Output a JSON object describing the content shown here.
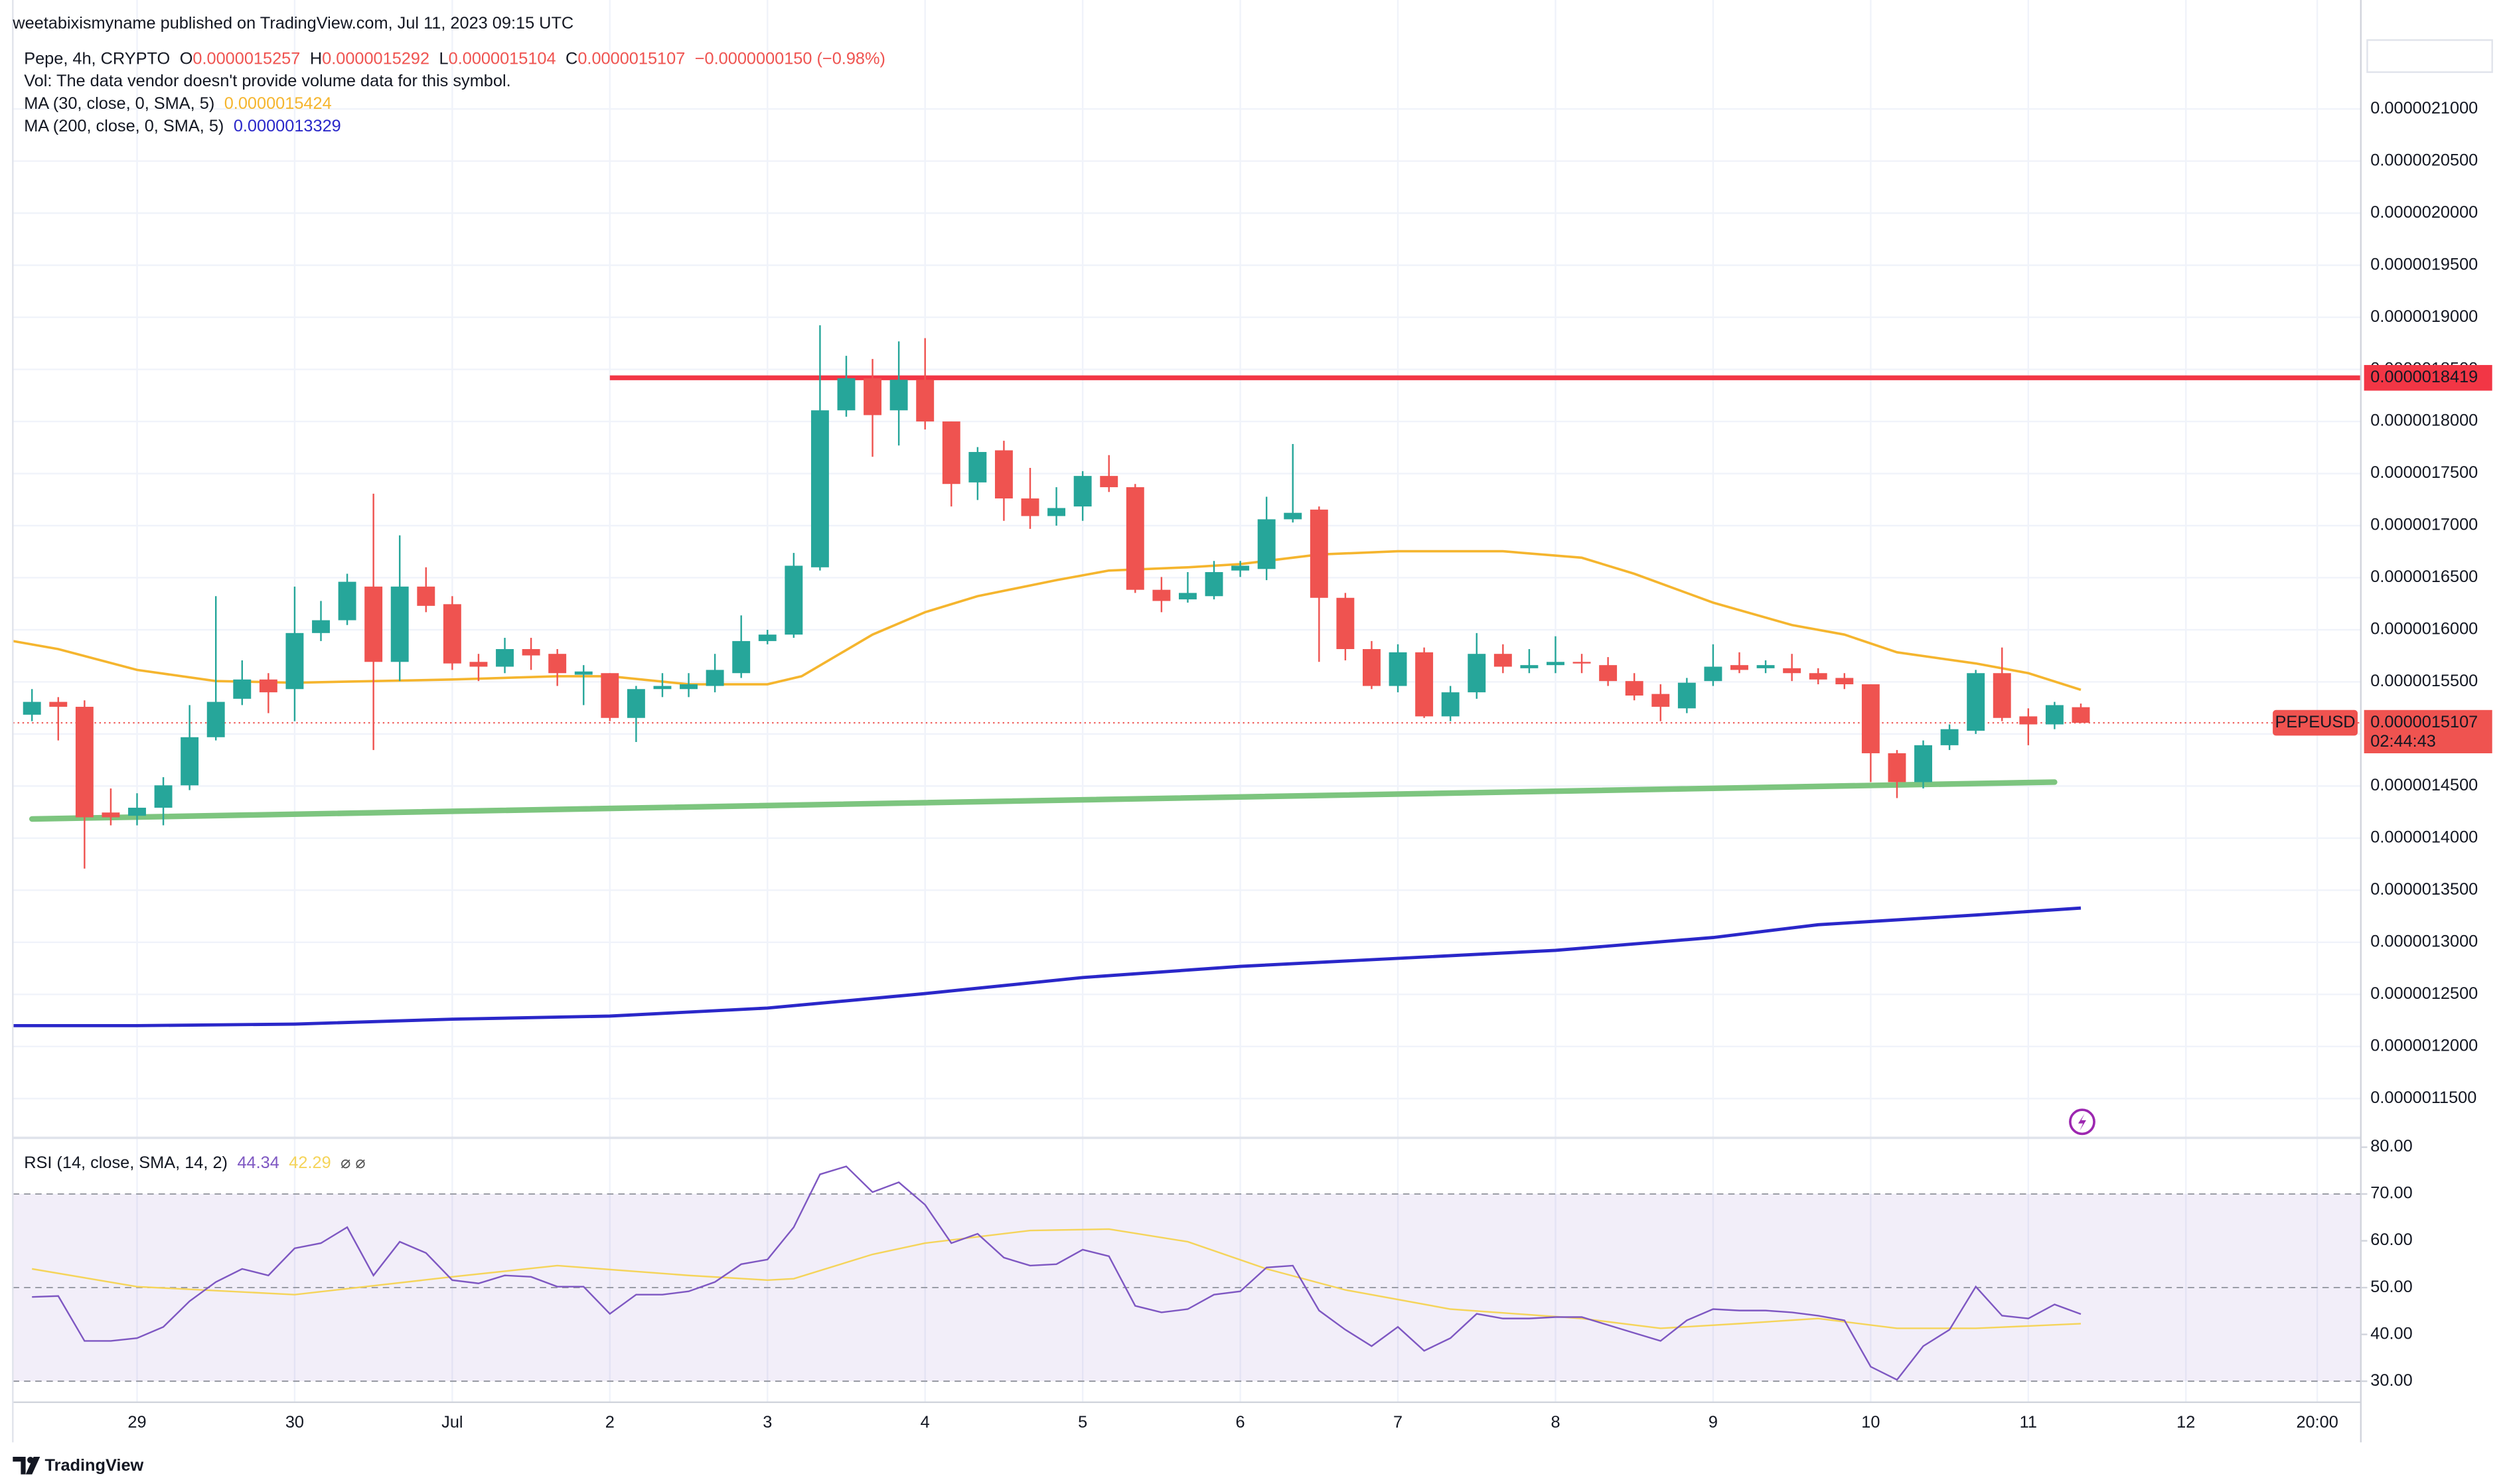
{
  "header": {
    "publisher": "weetabixismyname published on TradingView.com, Jul 11, 2023 09:15 UTC"
  },
  "footer": {
    "brand": "TradingView"
  },
  "chart_data": {
    "type": "candlestick",
    "legend": {
      "symbol": "Pepe, 4h, CRYPTO",
      "ohlc": [
        {
          "key": "O",
          "value": "0.0000015257"
        },
        {
          "key": "H",
          "value": "0.0000015292"
        },
        {
          "key": "L",
          "value": "0.0000015104"
        },
        {
          "key": "C",
          "value": "0.0000015107"
        }
      ],
      "change": "−0.0000000150 (−0.98%)",
      "volume_note": "Vol: The data vendor doesn't provide volume data for this symbol."
    },
    "up_color": "#26a69a",
    "down_color": "#ef5350",
    "grid": true,
    "xlim": [
      -0.73,
      88.66
    ],
    "xticks": [
      {
        "value": 4,
        "label": "29"
      },
      {
        "value": 10,
        "label": "30"
      },
      {
        "value": 16,
        "label": "Jul"
      },
      {
        "value": 22,
        "label": "2"
      },
      {
        "value": 28,
        "label": "3"
      },
      {
        "value": 34,
        "label": "4"
      },
      {
        "value": 40,
        "label": "5"
      },
      {
        "value": 46,
        "label": "6"
      },
      {
        "value": 52,
        "label": "7"
      },
      {
        "value": 58,
        "label": "8"
      },
      {
        "value": 64,
        "label": "9"
      },
      {
        "value": 70,
        "label": "10"
      },
      {
        "value": 76,
        "label": "11"
      },
      {
        "value": 82,
        "label": "12"
      },
      {
        "value": 87,
        "label": "20:00"
      }
    ],
    "ylim": [
      1.1123e-06,
      2.2046e-06
    ],
    "yticks": [
      {
        "value": 2.1e-06,
        "label": "0.0000021000"
      },
      {
        "value": 2.05e-06,
        "label": "0.0000020500"
      },
      {
        "value": 2e-06,
        "label": "0.0000020000"
      },
      {
        "value": 1.95e-06,
        "label": "0.0000019500"
      },
      {
        "value": 1.9e-06,
        "label": "0.0000019000"
      },
      {
        "value": 1.85e-06,
        "label": "0.0000018500"
      },
      {
        "value": 1.8e-06,
        "label": "0.0000018000"
      },
      {
        "value": 1.75e-06,
        "label": "0.0000017500"
      },
      {
        "value": 1.7e-06,
        "label": "0.0000017000"
      },
      {
        "value": 1.65e-06,
        "label": "0.0000016500"
      },
      {
        "value": 1.6e-06,
        "label": "0.0000016000"
      },
      {
        "value": 1.55e-06,
        "label": "0.0000015500"
      },
      {
        "value": 1.5e-06,
        "label": "0.0000015000"
      },
      {
        "value": 1.45e-06,
        "label": "0.0000014500"
      },
      {
        "value": 1.4e-06,
        "label": "0.0000014000"
      },
      {
        "value": 1.35e-06,
        "label": "0.0000013500"
      },
      {
        "value": 1.3e-06,
        "label": "0.0000013000"
      },
      {
        "value": 1.25e-06,
        "label": "0.0000012500"
      },
      {
        "value": 1.2e-06,
        "label": "0.0000012000"
      },
      {
        "value": 1.15e-06,
        "label": "0.0000011500"
      }
    ],
    "open": [
      1.5185e-06,
      1.5308e-06,
      1.5261e-06,
      1.4246e-06,
      1.4215e-06,
      1.4292e-06,
      1.4507e-06,
      1.4969e-06,
      1.5338e-06,
      1.5523e-06,
      1.5431e-06,
      1.5969e-06,
      1.6092e-06,
      1.6415e-06,
      1.5692e-06,
      1.6415e-06,
      1.6246e-06,
      1.5692e-06,
      1.5646e-06,
      1.5815e-06,
      1.5769e-06,
      1.5569e-06,
      1.5584e-06,
      1.5154e-06,
      1.5431e-06,
      1.5431e-06,
      1.5461e-06,
      1.5584e-06,
      1.5892e-06,
      1.5954e-06,
      1.66e-06,
      1.8107e-06,
      1.8415e-06,
      1.8107e-06,
      1.84e-06,
      1.8e-06,
      1.7415e-06,
      1.7723e-06,
      1.7261e-06,
      1.7092e-06,
      1.7184e-06,
      1.7477e-06,
      1.7369e-06,
      1.6384e-06,
      1.6292e-06,
      1.6323e-06,
      1.6569e-06,
      1.6584e-06,
      1.7061e-06,
      1.7154e-06,
      1.6307e-06,
      1.5815e-06,
      1.5461e-06,
      1.5784e-06,
      1.5169e-06,
      1.54e-06,
      1.5769e-06,
      1.5631e-06,
      1.5661e-06,
      1.5692e-06,
      1.5661e-06,
      1.5508e-06,
      1.5384e-06,
      1.5246e-06,
      1.5508e-06,
      1.5661e-06,
      1.5631e-06,
      1.5631e-06,
      1.5584e-06,
      1.5538e-06,
      1.5477e-06,
      1.4815e-06,
      1.4538e-06,
      1.4892e-06,
      1.5031e-06,
      1.5584e-06,
      1.5169e-06,
      1.5092e-06,
      1.5257e-06
    ],
    "high": [
      1.5431e-06,
      1.5354e-06,
      1.5323e-06,
      1.4477e-06,
      1.4431e-06,
      1.4585e-06,
      1.5277e-06,
      1.6323e-06,
      1.5707e-06,
      1.5584e-06,
      1.6415e-06,
      1.6277e-06,
      1.6538e-06,
      1.7307e-06,
      1.6907e-06,
      1.66e-06,
      1.6323e-06,
      1.5769e-06,
      1.5923e-06,
      1.5923e-06,
      1.5815e-06,
      1.5661e-06,
      1.5584e-06,
      1.5461e-06,
      1.5584e-06,
      1.5584e-06,
      1.5769e-06,
      1.6138e-06,
      1.6e-06,
      1.6738e-06,
      1.8923e-06,
      1.863e-06,
      1.86e-06,
      1.8769e-06,
      1.88e-06,
      1.8e-06,
      1.7754e-06,
      1.7815e-06,
      1.7554e-06,
      1.7369e-06,
      1.7523e-06,
      1.7677e-06,
      1.74e-06,
      1.6507e-06,
      1.6554e-06,
      1.6661e-06,
      1.6661e-06,
      1.7277e-06,
      1.7784e-06,
      1.7184e-06,
      1.6354e-06,
      1.5892e-06,
      1.5861e-06,
      1.583e-06,
      1.5461e-06,
      1.5969e-06,
      1.5861e-06,
      1.5815e-06,
      1.5938e-06,
      1.5769e-06,
      1.5738e-06,
      1.5584e-06,
      1.5477e-06,
      1.5538e-06,
      1.5861e-06,
      1.5784e-06,
      1.5707e-06,
      1.5769e-06,
      1.5631e-06,
      1.5584e-06,
      1.5477e-06,
      1.4846e-06,
      1.4938e-06,
      1.5092e-06,
      1.5615e-06,
      1.583e-06,
      1.5246e-06,
      1.5308e-06,
      1.5292e-06
    ],
    "low": [
      1.5123e-06,
      1.4938e-06,
      1.3708e-06,
      1.4123e-06,
      1.4123e-06,
      1.4123e-06,
      1.4461e-06,
      1.4938e-06,
      1.5277e-06,
      1.52e-06,
      1.5123e-06,
      1.5892e-06,
      1.6046e-06,
      1.4846e-06,
      1.5508e-06,
      1.6169e-06,
      1.5615e-06,
      1.5508e-06,
      1.5584e-06,
      1.5615e-06,
      1.5461e-06,
      1.5277e-06,
      1.5123e-06,
      1.4923e-06,
      1.5354e-06,
      1.5354e-06,
      1.54e-06,
      1.5538e-06,
      1.5861e-06,
      1.5923e-06,
      1.6569e-06,
      1.8046e-06,
      1.7661e-06,
      1.7769e-06,
      1.7923e-06,
      1.7184e-06,
      1.7246e-06,
      1.7046e-06,
      1.6969e-06,
      1.7e-06,
      1.7046e-06,
      1.7323e-06,
      1.6354e-06,
      1.6169e-06,
      1.6261e-06,
      1.6292e-06,
      1.6507e-06,
      1.6477e-06,
      1.703e-06,
      1.5692e-06,
      1.5707e-06,
      1.5431e-06,
      1.54e-06,
      1.5154e-06,
      1.5123e-06,
      1.5338e-06,
      1.5584e-06,
      1.5584e-06,
      1.5584e-06,
      1.5584e-06,
      1.5461e-06,
      1.5323e-06,
      1.5123e-06,
      1.52e-06,
      1.5461e-06,
      1.5584e-06,
      1.5584e-06,
      1.5508e-06,
      1.5477e-06,
      1.5431e-06,
      1.4538e-06,
      1.4385e-06,
      1.4477e-06,
      1.4846e-06,
      1.5e-06,
      1.5123e-06,
      1.4892e-06,
      1.5046e-06,
      1.5104e-06
    ],
    "close": [
      1.5308e-06,
      1.5261e-06,
      1.42e-06,
      1.42e-06,
      1.4292e-06,
      1.4507e-06,
      1.4969e-06,
      1.5308e-06,
      1.5523e-06,
      1.54e-06,
      1.5969e-06,
      1.6092e-06,
      1.6461e-06,
      1.5692e-06,
      1.6415e-06,
      1.623e-06,
      1.5677e-06,
      1.5646e-06,
      1.5815e-06,
      1.5754e-06,
      1.5584e-06,
      1.56e-06,
      1.5154e-06,
      1.5431e-06,
      1.5461e-06,
      1.5477e-06,
      1.5615e-06,
      1.5892e-06,
      1.5954e-06,
      1.6615e-06,
      1.8107e-06,
      1.8415e-06,
      1.8061e-06,
      1.84e-06,
      1.8e-06,
      1.74e-06,
      1.7707e-06,
      1.7261e-06,
      1.7092e-06,
      1.7169e-06,
      1.7477e-06,
      1.7369e-06,
      1.6384e-06,
      1.6277e-06,
      1.6354e-06,
      1.6554e-06,
      1.6615e-06,
      1.7061e-06,
      1.7123e-06,
      1.6307e-06,
      1.5815e-06,
      1.5461e-06,
      1.5784e-06,
      1.5169e-06,
      1.54e-06,
      1.5769e-06,
      1.5646e-06,
      1.5661e-06,
      1.5692e-06,
      1.5677e-06,
      1.5508e-06,
      1.5369e-06,
      1.5261e-06,
      1.5492e-06,
      1.5646e-06,
      1.5615e-06,
      1.5661e-06,
      1.5584e-06,
      1.5523e-06,
      1.5477e-06,
      1.4815e-06,
      1.4538e-06,
      1.4892e-06,
      1.5046e-06,
      1.5584e-06,
      1.5154e-06,
      1.5092e-06,
      1.5277e-06,
      1.5107e-06
    ],
    "ma": [
      {
        "name": "MA (30, close, 0, SMA, 5)",
        "value_label": "0.0000015424",
        "color": "#f5b52e",
        "x": [
          -0.73,
          1,
          4,
          7,
          10,
          16,
          20,
          22,
          25,
          28,
          29.3,
          32,
          34,
          36,
          39,
          41,
          44,
          46,
          49,
          52,
          56,
          59,
          61,
          64,
          67,
          69,
          71,
          74,
          76,
          78
        ],
        "values": [
          1.5892e-06,
          1.5815e-06,
          1.5615e-06,
          1.5508e-06,
          1.5492e-06,
          1.5523e-06,
          1.5554e-06,
          1.5554e-06,
          1.5477e-06,
          1.5477e-06,
          1.5554e-06,
          1.5954e-06,
          1.6169e-06,
          1.6323e-06,
          1.6477e-06,
          1.6569e-06,
          1.66e-06,
          1.6631e-06,
          1.6723e-06,
          1.6754e-06,
          1.6754e-06,
          1.6692e-06,
          1.6538e-06,
          1.6261e-06,
          1.6046e-06,
          1.5954e-06,
          1.5784e-06,
          1.5677e-06,
          1.5584e-06,
          1.5424e-06
        ]
      },
      {
        "name": "MA (200, close, 0, SMA, 5)",
        "value_label": "0.0000013329",
        "color": "#2a27c9",
        "x": [
          -0.73,
          4,
          10,
          16,
          22,
          28,
          34,
          40,
          46,
          52,
          58,
          64,
          68,
          70,
          74,
          78
        ],
        "values": [
          1.22e-06,
          1.22e-06,
          1.2215e-06,
          1.2262e-06,
          1.2292e-06,
          1.2369e-06,
          1.2508e-06,
          1.2662e-06,
          1.2769e-06,
          1.2846e-06,
          1.2923e-06,
          1.3046e-06,
          1.3169e-06,
          1.32e-06,
          1.3262e-06,
          1.3329e-06
        ]
      }
    ],
    "resistance": {
      "value": 1.8419e-06,
      "label": "0.0000018419",
      "start_x": 22,
      "color": "#f23645"
    },
    "trendline": {
      "x": [
        0,
        77
      ],
      "values": [
        1.4184e-06,
        1.4538e-06
      ],
      "color": "#7dc57f"
    },
    "last_price": {
      "symbol": "PEPEUSD",
      "label": "0.0000015107",
      "countdown": "02:44:43",
      "color": "#ef5350"
    },
    "rsi": {
      "name": "RSI (14, close, SMA, 14, 2)",
      "icons": "⌀ ⌀",
      "ylim": [
        25.5,
        82
      ],
      "yticks": [
        {
          "value": 80,
          "label": "80.00"
        },
        {
          "value": 70,
          "label": "70.00"
        },
        {
          "value": 60,
          "label": "60.00"
        },
        {
          "value": 50,
          "label": "50.00"
        },
        {
          "value": 40,
          "label": "40.00"
        },
        {
          "value": 30,
          "label": "30.00"
        }
      ],
      "levels": [
        70,
        50,
        30
      ],
      "band": [
        30,
        70
      ],
      "band_color": "#7e57c2",
      "series": [
        {
          "value_label": "44.34",
          "color": "#7e57c2",
          "values": [
            48.0,
            48.2,
            38.6,
            38.6,
            39.2,
            41.6,
            47.1,
            51.2,
            54.0,
            52.6,
            58.4,
            59.5,
            62.9,
            52.6,
            59.8,
            57.4,
            51.6,
            50.9,
            52.6,
            52.3,
            50.2,
            50.2,
            44.4,
            48.5,
            48.5,
            49.2,
            51.2,
            55.0,
            56.0,
            62.9,
            74.2,
            75.9,
            70.4,
            72.5,
            67.7,
            59.5,
            61.5,
            56.4,
            54.7,
            55.0,
            58.1,
            56.7,
            46.1,
            44.7,
            45.4,
            48.5,
            49.2,
            54.3,
            54.7,
            45.1,
            41.0,
            37.5,
            41.6,
            36.5,
            39.2,
            44.4,
            43.4,
            43.4,
            43.7,
            43.7,
            42.0,
            40.3,
            38.6,
            43.0,
            45.4,
            45.1,
            45.1,
            44.7,
            44.0,
            43.0,
            33.1,
            30.3,
            37.5,
            41.0,
            50.2,
            44.0,
            43.4,
            46.4,
            44.34
          ]
        },
        {
          "value_label": "42.29",
          "color": "#f5d45a",
          "x": [
            0,
            4,
            10,
            16,
            20,
            25,
            28,
            29,
            32,
            34,
            38,
            41,
            44,
            47,
            50,
            54,
            59,
            62,
            65,
            68,
            71,
            74,
            78
          ],
          "values": [
            54.0,
            50.2,
            48.5,
            52.3,
            54.7,
            52.6,
            51.6,
            51.9,
            57.1,
            59.5,
            62.2,
            62.5,
            59.8,
            54.0,
            49.5,
            45.4,
            43.4,
            41.3,
            42.3,
            43.4,
            41.3,
            41.3,
            42.29
          ]
        }
      ]
    }
  }
}
